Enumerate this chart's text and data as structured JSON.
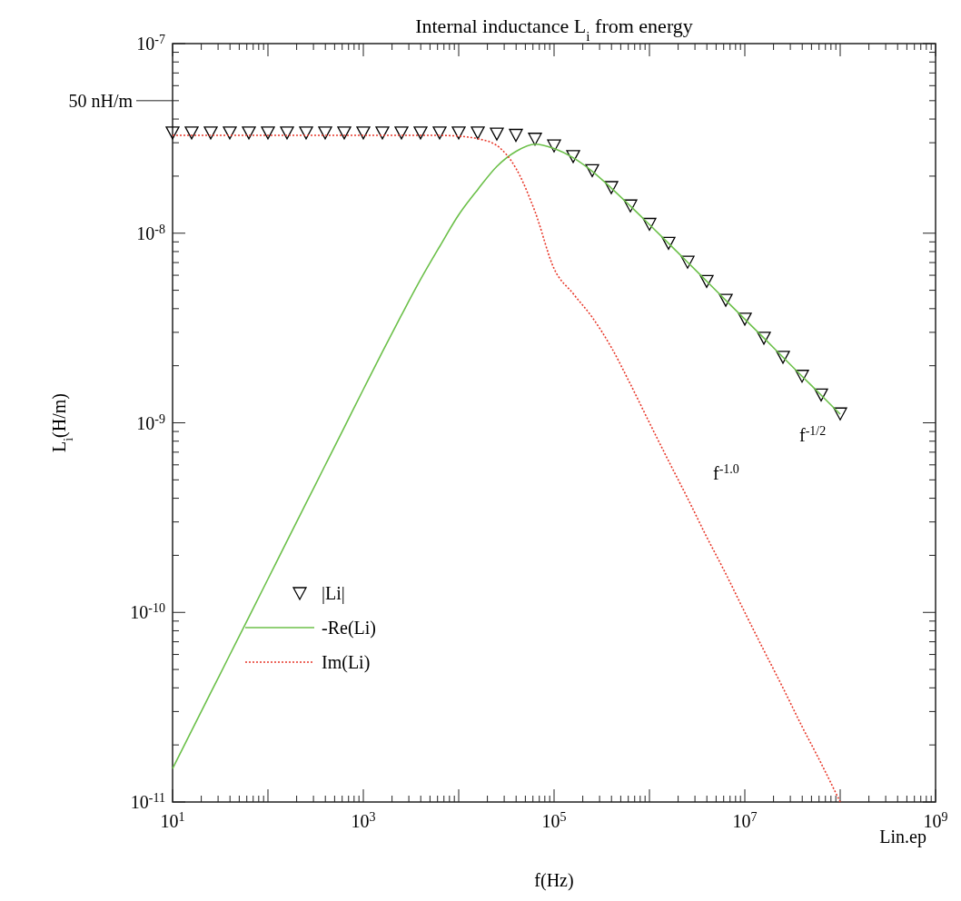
{
  "chart_data": {
    "type": "line",
    "title": "Internal inductance L$_{i}$ from energy",
    "xlabel": "f(Hz)",
    "ylabel": "L$_{i}$(H/m)",
    "log": "xy",
    "x": [
      10,
      15.85,
      25.12,
      39.81,
      63.1,
      100,
      158.5,
      251.2,
      398.1,
      631,
      1000,
      1585,
      2512,
      3981,
      6310,
      10000,
      15850,
      25120,
      39810,
      63100,
      100000,
      158500,
      251200,
      398100,
      631000,
      1000000,
      1585000,
      2512000,
      3981000,
      6310000,
      10000000,
      15850000,
      25120000,
      39810000,
      63100000,
      100000000
    ],
    "series": [
      {
        "name": "|Li|",
        "type": "scatter",
        "marker": "triangle",
        "color": "#000000",
        "values": [
          3.4e-08,
          3.4e-08,
          3.4e-08,
          3.4e-08,
          3.4e-08,
          3.4e-08,
          3.4e-08,
          3.4e-08,
          3.4e-08,
          3.4e-08,
          3.4e-08,
          3.4e-08,
          3.4e-08,
          3.4e-08,
          3.4e-08,
          3.4e-08,
          3.4e-08,
          3.35e-08,
          3.3e-08,
          3.15e-08,
          2.9e-08,
          2.55e-08,
          2.15e-08,
          1.75e-08,
          1.4e-08,
          1.12e-08,
          8.9e-09,
          7.07e-09,
          5.6e-09,
          4.45e-09,
          3.54e-09,
          2.81e-09,
          2.23e-09,
          1.77e-09,
          1.41e-09,
          1.12e-09
        ]
      },
      {
        "name": "-Re(Li)",
        "line_style": "solid",
        "color": "#6cc04a",
        "values": [
          1.5e-11,
          2.38e-11,
          3.77e-11,
          5.97e-11,
          9.46e-11,
          1.5e-10,
          2.38e-10,
          3.77e-10,
          5.97e-10,
          9.46e-10,
          1.5e-09,
          2.37e-09,
          3.7e-09,
          5.7e-09,
          8.5e-09,
          1.25e-08,
          1.7e-08,
          2.25e-08,
          2.7e-08,
          2.95e-08,
          2.8e-08,
          2.5e-08,
          2.12e-08,
          1.73e-08,
          1.39e-08,
          1.11e-08,
          8.85e-09,
          7.03e-09,
          5.58e-09,
          4.43e-09,
          3.52e-09,
          2.8e-09,
          2.22e-09,
          1.76e-09,
          1.4e-09,
          1.11e-09
        ]
      },
      {
        "name": "Im(Li)",
        "line_style": "dotted",
        "color": "#e8392b",
        "values": [
          3.28e-08,
          3.28e-08,
          3.28e-08,
          3.28e-08,
          3.28e-08,
          3.28e-08,
          3.28e-08,
          3.28e-08,
          3.28e-08,
          3.28e-08,
          3.28e-08,
          3.28e-08,
          3.28e-08,
          3.28e-08,
          3.28e-08,
          3.25e-08,
          3.15e-08,
          2.9e-08,
          2.2e-08,
          1.3e-08,
          6.5e-09,
          4.8e-09,
          3.6e-09,
          2.5e-09,
          1.6e-09,
          1e-09,
          6.3e-10,
          4e-10,
          2.5e-10,
          1.6e-10,
          1e-10,
          6.3e-11,
          4e-11,
          2.5e-11,
          1.6e-11,
          1e-11
        ]
      }
    ],
    "xlim": [
      10,
      1000000000
    ],
    "xticks": [
      {
        "value": 10,
        "label": "10$^{1}$"
      },
      {
        "value": 100,
        "label": null
      },
      {
        "value": 1000,
        "label": "10$^{3}$"
      },
      {
        "value": 10000,
        "label": null
      },
      {
        "value": 100000,
        "label": "10$^{5}$"
      },
      {
        "value": 1000000,
        "label": null
      },
      {
        "value": 10000000,
        "label": "10$^{7}$"
      },
      {
        "value": 100000000,
        "label": null
      },
      {
        "value": 1000000000,
        "label": "10$^{9}$"
      }
    ],
    "ylim": [
      1e-11,
      1e-07
    ],
    "yticks": [
      {
        "value": 1e-11,
        "label": "10$^{-11}$"
      },
      {
        "value": 1e-10,
        "label": "10$^{-10}$"
      },
      {
        "value": 1e-09,
        "label": "10$^{-9}$"
      },
      {
        "value": 1e-08,
        "label": "10$^{-8}$"
      },
      {
        "value": 1e-07,
        "label": "10$^{-7}$"
      }
    ],
    "ref_lines": [
      {
        "axis": "y",
        "value": 5e-08,
        "label": "50 nH/m"
      }
    ],
    "grid": false,
    "legend": "bottom left",
    "annotations": [
      "f$^{-1/2}$",
      "f$^{-1.0}$",
      "Lin.ep"
    ]
  }
}
